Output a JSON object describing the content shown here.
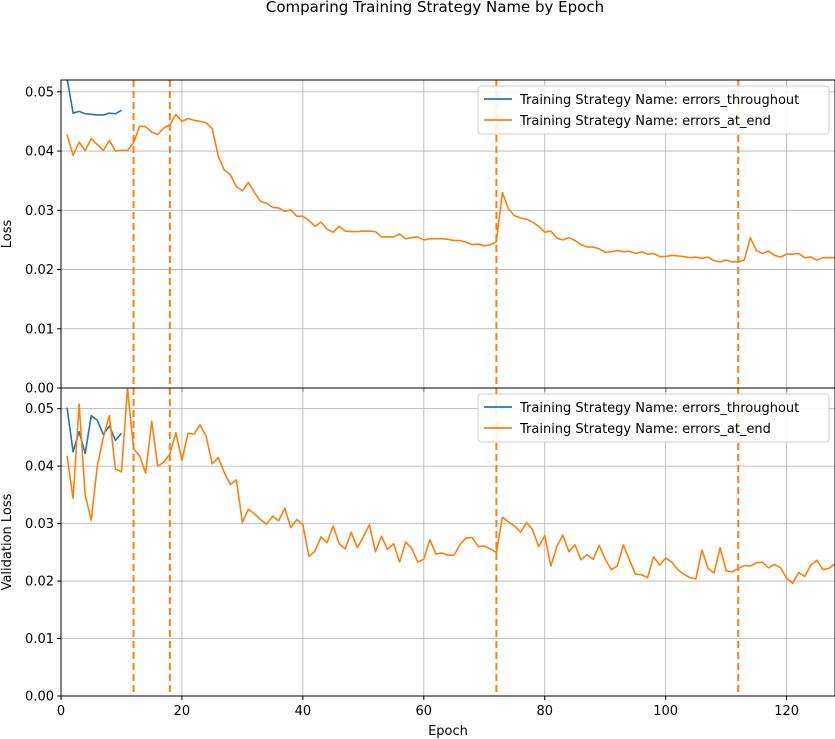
{
  "title": "Comparing Training Strategy Name by Epoch",
  "colors": {
    "errors_throughout": "#1f77b4",
    "errors_at_end": "#ff7f0e",
    "grid": "#b0b0b0"
  },
  "chart_data": [
    {
      "type": "line",
      "ylabel": "Loss",
      "xlabel": "",
      "xlim": [
        0,
        128
      ],
      "ylim": [
        0,
        0.052
      ],
      "xticks": [
        0,
        20,
        40,
        60,
        80,
        100,
        120
      ],
      "yticks": [
        "0.00",
        "0.01",
        "0.02",
        "0.03",
        "0.04",
        "0.05"
      ],
      "grid": true,
      "legend_position": "top-right",
      "vlines": [
        12,
        18,
        72,
        112
      ],
      "series": [
        {
          "name": "Training Strategy Name: errors_throughout",
          "x": [
            1,
            2,
            3,
            4,
            5,
            6,
            7,
            8,
            9,
            10
          ],
          "y": [
            0.0523,
            0.0464,
            0.0467,
            0.0463,
            0.0462,
            0.0461,
            0.0461,
            0.0464,
            0.0463,
            0.0469
          ]
        },
        {
          "name": "Training Strategy Name: errors_at_end",
          "x": [
            1,
            2,
            3,
            4,
            5,
            6,
            7,
            8,
            9,
            10,
            11,
            12,
            13,
            14,
            15,
            16,
            17,
            18,
            19,
            20,
            21,
            22,
            23,
            24,
            25,
            26,
            27,
            28,
            29,
            30,
            31,
            32,
            33,
            34,
            35,
            36,
            37,
            38,
            39,
            40,
            41,
            42,
            43,
            44,
            45,
            46,
            47,
            48,
            49,
            50,
            51,
            52,
            53,
            54,
            55,
            56,
            57,
            58,
            59,
            60,
            61,
            62,
            63,
            64,
            65,
            66,
            67,
            68,
            69,
            70,
            71,
            72,
            73,
            74,
            75,
            76,
            77,
            78,
            79,
            80,
            81,
            82,
            83,
            84,
            85,
            86,
            87,
            88,
            89,
            90,
            91,
            92,
            93,
            94,
            95,
            96,
            97,
            98,
            99,
            100,
            101,
            102,
            103,
            104,
            105,
            106,
            107,
            108,
            109,
            110,
            111,
            112,
            113,
            114,
            115,
            116,
            117,
            118,
            119,
            120,
            121,
            122,
            123,
            124,
            125,
            126,
            127,
            128
          ],
          "y": [
            0.0428,
            0.0393,
            0.0415,
            0.0401,
            0.0421,
            0.0411,
            0.0401,
            0.0418,
            0.04,
            0.0401,
            0.0401,
            0.0414,
            0.0442,
            0.0441,
            0.0432,
            0.0428,
            0.0439,
            0.0444,
            0.0462,
            0.045,
            0.0455,
            0.0452,
            0.045,
            0.0448,
            0.0438,
            0.0392,
            0.0368,
            0.036,
            0.034,
            0.0333,
            0.0347,
            0.033,
            0.0315,
            0.0312,
            0.0305,
            0.0304,
            0.0298,
            0.0301,
            0.029,
            0.029,
            0.0283,
            0.0273,
            0.028,
            0.0268,
            0.0263,
            0.0273,
            0.0265,
            0.0264,
            0.0264,
            0.0265,
            0.0265,
            0.0264,
            0.0255,
            0.0255,
            0.0255,
            0.026,
            0.0252,
            0.0254,
            0.0255,
            0.025,
            0.0252,
            0.0252,
            0.0252,
            0.0251,
            0.0249,
            0.0249,
            0.0246,
            0.0242,
            0.0243,
            0.024,
            0.0242,
            0.0247,
            0.033,
            0.0302,
            0.0291,
            0.0287,
            0.0285,
            0.028,
            0.0273,
            0.0263,
            0.0265,
            0.0253,
            0.025,
            0.0254,
            0.0249,
            0.0242,
            0.0238,
            0.0238,
            0.0235,
            0.0229,
            0.023,
            0.0232,
            0.023,
            0.0231,
            0.0227,
            0.023,
            0.0226,
            0.0227,
            0.0222,
            0.0222,
            0.0224,
            0.0223,
            0.0222,
            0.022,
            0.0221,
            0.0219,
            0.0221,
            0.0215,
            0.0213,
            0.0216,
            0.0213,
            0.0213,
            0.0216,
            0.0254,
            0.0232,
            0.0227,
            0.0231,
            0.0224,
            0.0221,
            0.0226,
            0.0226,
            0.0227,
            0.022,
            0.0221,
            0.0216,
            0.022,
            0.022,
            0.022
          ]
        }
      ]
    },
    {
      "type": "line",
      "ylabel": "Validation Loss",
      "xlabel": "Epoch",
      "xlim": [
        0,
        128
      ],
      "ylim": [
        0,
        0.0536
      ],
      "xticks": [
        0,
        20,
        40,
        60,
        80,
        100,
        120
      ],
      "yticks": [
        "0.00",
        "0.01",
        "0.02",
        "0.03",
        "0.04",
        "0.05"
      ],
      "grid": true,
      "legend_position": "top-right",
      "vlines": [
        12,
        18,
        72,
        112
      ],
      "series": [
        {
          "name": "Training Strategy Name: errors_throughout",
          "x": [
            1,
            2,
            3,
            4,
            5,
            6,
            7,
            8,
            9,
            10
          ],
          "y": [
            0.0502,
            0.0425,
            0.046,
            0.0422,
            0.0488,
            0.048,
            0.0455,
            0.047,
            0.0445,
            0.0457
          ]
        },
        {
          "name": "Training Strategy Name: errors_at_end",
          "x": [
            1,
            2,
            3,
            4,
            5,
            6,
            7,
            8,
            9,
            10,
            11,
            12,
            13,
            14,
            15,
            16,
            17,
            18,
            19,
            20,
            21,
            22,
            23,
            24,
            25,
            26,
            27,
            28,
            29,
            30,
            31,
            32,
            33,
            34,
            35,
            36,
            37,
            38,
            39,
            40,
            41,
            42,
            43,
            44,
            45,
            46,
            47,
            48,
            49,
            50,
            51,
            52,
            53,
            54,
            55,
            56,
            57,
            58,
            59,
            60,
            61,
            62,
            63,
            64,
            65,
            66,
            67,
            68,
            69,
            70,
            71,
            72,
            73,
            74,
            75,
            76,
            77,
            78,
            79,
            80,
            81,
            82,
            83,
            84,
            85,
            86,
            87,
            88,
            89,
            90,
            91,
            92,
            93,
            94,
            95,
            96,
            97,
            98,
            99,
            100,
            101,
            102,
            103,
            104,
            105,
            106,
            107,
            108,
            109,
            110,
            111,
            112,
            113,
            114,
            115,
            116,
            117,
            118,
            119,
            120,
            121,
            122,
            123,
            124,
            125,
            126,
            127,
            128
          ],
          "y": [
            0.0418,
            0.0344,
            0.0508,
            0.035,
            0.0306,
            0.04,
            0.045,
            0.0488,
            0.0395,
            0.039,
            0.0536,
            0.043,
            0.0418,
            0.0388,
            0.0478,
            0.04,
            0.0407,
            0.0421,
            0.0458,
            0.041,
            0.0457,
            0.0456,
            0.0472,
            0.0452,
            0.0404,
            0.0415,
            0.0389,
            0.0368,
            0.0376,
            0.0302,
            0.0325,
            0.0317,
            0.0307,
            0.0299,
            0.0313,
            0.0305,
            0.0327,
            0.0293,
            0.0307,
            0.0298,
            0.0243,
            0.0252,
            0.0277,
            0.0267,
            0.0296,
            0.0265,
            0.0256,
            0.0285,
            0.0258,
            0.0277,
            0.0298,
            0.0251,
            0.0278,
            0.0255,
            0.0265,
            0.0233,
            0.0268,
            0.0257,
            0.0233,
            0.0238,
            0.0272,
            0.0247,
            0.0249,
            0.0245,
            0.0245,
            0.0264,
            0.0275,
            0.0276,
            0.026,
            0.0261,
            0.0256,
            0.025,
            0.0311,
            0.0303,
            0.0296,
            0.0285,
            0.0302,
            0.0289,
            0.026,
            0.0279,
            0.0226,
            0.026,
            0.028,
            0.0251,
            0.0263,
            0.0237,
            0.0246,
            0.0238,
            0.0262,
            0.0238,
            0.022,
            0.0226,
            0.0263,
            0.0237,
            0.0212,
            0.0211,
            0.0206,
            0.0242,
            0.0228,
            0.024,
            0.0233,
            0.022,
            0.0212,
            0.0206,
            0.0204,
            0.0254,
            0.0222,
            0.0214,
            0.0258,
            0.0218,
            0.0216,
            0.0222,
            0.0227,
            0.0226,
            0.0232,
            0.0233,
            0.0223,
            0.0229,
            0.0223,
            0.0205,
            0.0196,
            0.0215,
            0.0208,
            0.0228,
            0.0236,
            0.022,
            0.0222,
            0.023
          ]
        }
      ]
    }
  ]
}
